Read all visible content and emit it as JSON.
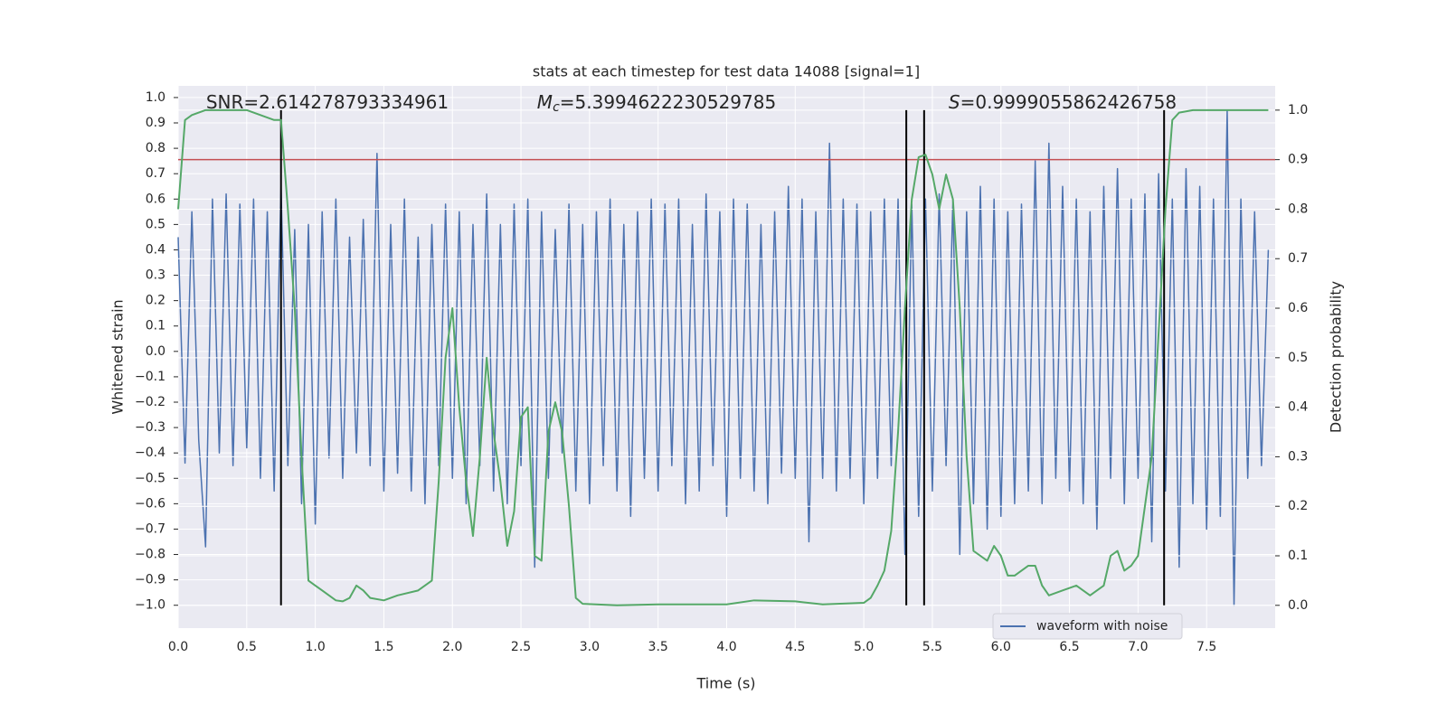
{
  "chart_data": {
    "type": "line",
    "title": "stats at each timestep for test data 14088 [signal=1]",
    "xlabel": "Time (s)",
    "ylabel": "Whitened strain",
    "y2label": "Detection probability",
    "annotations": [
      {
        "text": "SNR=2.614278793334961"
      },
      {
        "symbol": "M",
        "subscript": "c",
        "text": "=5.3994622230529785"
      },
      {
        "symbol": "S",
        "text": "=0.9999055862426758"
      }
    ],
    "xlim": [
      0,
      8.0
    ],
    "ylim": [
      -1.09,
      1.046
    ],
    "y2lim": [
      -0.046,
      1.049
    ],
    "xticks": [
      {
        "value": 0,
        "label": "0.0"
      },
      0.5,
      {
        "value": 1,
        "label": "1.0"
      },
      1.5,
      {
        "value": 2,
        "label": "2.0"
      },
      2.5,
      {
        "value": 3,
        "label": "3.0"
      },
      3.5,
      {
        "value": 4,
        "label": "4.0"
      },
      4.5,
      {
        "value": 5,
        "label": "5.0"
      },
      5.5,
      {
        "value": 6,
        "label": "6.0"
      },
      6.5,
      {
        "value": 7,
        "label": "7.0"
      },
      7.5
    ],
    "yticks": [
      {
        "value": -1,
        "label": "−1.0"
      },
      {
        "value": -0.9,
        "label": "−0.9"
      },
      {
        "value": -0.8,
        "label": "−0.8"
      },
      {
        "value": -0.7,
        "label": "−0.7"
      },
      {
        "value": -0.6,
        "label": "−0.6"
      },
      {
        "value": -0.5,
        "label": "−0.5"
      },
      {
        "value": -0.4,
        "label": "−0.4"
      },
      {
        "value": -0.3,
        "label": "−0.3"
      },
      {
        "value": -0.2,
        "label": "−0.2"
      },
      {
        "value": -0.1,
        "label": "−0.1"
      },
      {
        "value": 0,
        "label": "0.0"
      },
      0.1,
      0.2,
      0.3,
      0.4,
      0.5,
      0.6,
      0.7,
      0.8,
      0.9,
      {
        "value": 1,
        "label": "1.0"
      }
    ],
    "y2ticks": [
      {
        "value": 0,
        "label": "0.0"
      },
      0.1,
      0.2,
      0.3,
      0.4,
      0.5,
      0.6,
      0.7,
      0.8,
      0.9,
      {
        "value": 1,
        "label": "1.0"
      }
    ],
    "grid": true,
    "legend": "lower right",
    "hline_y2": 0.9,
    "hline_color": "#c44e52",
    "vlines": [
      0.75,
      5.31,
      5.44,
      7.19
    ],
    "vline_color": "#000000",
    "series": [
      {
        "name": "waveform with noise",
        "color": "#4c72b0",
        "x": [
          0,
          0.05,
          0.1,
          0.15,
          0.2,
          0.25,
          0.3,
          0.35,
          0.4,
          0.45,
          0.5,
          0.55,
          0.6,
          0.65,
          0.7,
          0.75,
          0.8,
          0.85,
          0.9,
          0.95,
          1,
          1.05,
          1.1,
          1.15,
          1.2,
          1.25,
          1.3,
          1.35,
          1.4,
          1.45,
          1.5,
          1.55,
          1.6,
          1.65,
          1.7,
          1.75,
          1.8,
          1.85,
          1.9,
          1.95,
          2,
          2.05,
          2.1,
          2.15,
          2.2,
          2.25,
          2.3,
          2.35,
          2.4,
          2.45,
          2.5,
          2.55,
          2.6,
          2.65,
          2.7,
          2.75,
          2.8,
          2.85,
          2.9,
          2.95,
          3,
          3.05,
          3.1,
          3.15,
          3.2,
          3.25,
          3.3,
          3.35,
          3.4,
          3.45,
          3.5,
          3.55,
          3.6,
          3.65,
          3.7,
          3.75,
          3.8,
          3.85,
          3.9,
          3.95,
          4,
          4.05,
          4.1,
          4.15,
          4.2,
          4.25,
          4.3,
          4.35,
          4.4,
          4.45,
          4.5,
          4.55,
          4.6,
          4.65,
          4.7,
          4.75,
          4.8,
          4.85,
          4.9,
          4.95,
          5,
          5.05,
          5.1,
          5.15,
          5.2,
          5.25,
          5.3,
          5.35,
          5.4,
          5.45,
          5.5,
          5.55,
          5.6,
          5.65,
          5.7,
          5.75,
          5.8,
          5.85,
          5.9,
          5.95,
          6,
          6.05,
          6.1,
          6.15,
          6.2,
          6.25,
          6.3,
          6.35,
          6.4,
          6.45,
          6.5,
          6.55,
          6.6,
          6.65,
          6.7,
          6.75,
          6.8,
          6.85,
          6.9,
          6.95,
          7,
          7.05,
          7.1,
          7.15,
          7.2,
          7.25,
          7.3,
          7.35,
          7.4,
          7.45,
          7.5,
          7.55,
          7.6,
          7.65,
          7.7,
          7.75,
          7.8,
          7.85,
          7.9,
          7.95
        ],
        "values": [
          0.45,
          -0.44,
          0.55,
          -0.35,
          -0.77,
          0.6,
          -0.4,
          0.62,
          -0.45,
          0.58,
          -0.38,
          0.6,
          -0.5,
          0.55,
          -0.55,
          0.65,
          -0.45,
          0.48,
          -0.6,
          0.5,
          -0.68,
          0.55,
          -0.42,
          0.6,
          -0.5,
          0.45,
          -0.4,
          0.52,
          -0.45,
          0.78,
          -0.55,
          0.5,
          -0.48,
          0.6,
          -0.55,
          0.45,
          -0.6,
          0.5,
          -0.45,
          0.58,
          -0.5,
          0.55,
          -0.6,
          0.5,
          -0.45,
          0.62,
          -0.55,
          0.5,
          -0.6,
          0.58,
          -0.45,
          0.6,
          -0.85,
          0.55,
          -0.5,
          0.48,
          -0.4,
          0.58,
          -0.55,
          0.5,
          -0.6,
          0.55,
          -0.45,
          0.6,
          -0.55,
          0.5,
          -0.65,
          0.55,
          -0.5,
          0.6,
          -0.55,
          0.58,
          -0.45,
          0.6,
          -0.6,
          0.5,
          -0.55,
          0.62,
          -0.45,
          0.55,
          -0.65,
          0.6,
          -0.5,
          0.58,
          -0.55,
          0.5,
          -0.6,
          0.55,
          -0.48,
          0.65,
          -0.5,
          0.6,
          -0.75,
          0.55,
          -0.5,
          0.82,
          -0.55,
          0.6,
          -0.5,
          0.58,
          -0.6,
          0.55,
          -0.5,
          0.6,
          -0.45,
          0.6,
          -0.8,
          0.58,
          -0.65,
          0.6,
          -0.55,
          0.62,
          -0.45,
          0.6,
          -0.8,
          0.55,
          -0.6,
          0.65,
          -0.7,
          0.6,
          -0.65,
          0.55,
          -0.6,
          0.58,
          -0.55,
          0.75,
          -0.6,
          0.82,
          -0.5,
          0.65,
          -0.55,
          0.6,
          -0.6,
          0.55,
          -0.7,
          0.65,
          -0.5,
          0.72,
          -0.6,
          0.6,
          -0.5,
          0.62,
          -0.75,
          0.7,
          -0.55,
          0.6,
          -0.85,
          0.72,
          -0.6,
          0.65,
          -0.7,
          0.6,
          -0.65,
          0.95,
          -1.0,
          0.6,
          -0.5,
          0.55,
          -0.45,
          0.4
        ]
      },
      {
        "color": "#55a868",
        "axis": "y2",
        "x": [
          0,
          0.05,
          0.1,
          0.2,
          0.5,
          0.6,
          0.7,
          0.75,
          0.8,
          0.85,
          0.9,
          0.95,
          1,
          1.05,
          1.1,
          1.15,
          1.2,
          1.25,
          1.3,
          1.35,
          1.4,
          1.5,
          1.6,
          1.75,
          1.85,
          1.9,
          1.95,
          2,
          2.05,
          2.1,
          2.15,
          2.2,
          2.25,
          2.3,
          2.35,
          2.4,
          2.45,
          2.5,
          2.55,
          2.6,
          2.65,
          2.7,
          2.75,
          2.8,
          2.85,
          2.9,
          2.95,
          3.2,
          3.5,
          4,
          4.2,
          4.5,
          4.7,
          5,
          5.05,
          5.1,
          5.15,
          5.2,
          5.25,
          5.3,
          5.35,
          5.4,
          5.45,
          5.5,
          5.55,
          5.6,
          5.65,
          5.7,
          5.75,
          5.8,
          5.85,
          5.9,
          5.95,
          6,
          6.05,
          6.1,
          6.2,
          6.25,
          6.3,
          6.35,
          6.45,
          6.55,
          6.65,
          6.75,
          6.8,
          6.85,
          6.9,
          6.95,
          7,
          7.05,
          7.1,
          7.15,
          7.2,
          7.25,
          7.3,
          7.4,
          7.95
        ],
        "values": [
          0.8,
          0.98,
          0.99,
          1.0,
          1.0,
          0.99,
          0.98,
          0.98,
          0.8,
          0.6,
          0.3,
          0.05,
          0.04,
          0.03,
          0.02,
          0.01,
          0.008,
          0.015,
          0.04,
          0.03,
          0.015,
          0.01,
          0.02,
          0.03,
          0.05,
          0.25,
          0.5,
          0.6,
          0.4,
          0.25,
          0.14,
          0.3,
          0.5,
          0.35,
          0.25,
          0.12,
          0.19,
          0.38,
          0.4,
          0.1,
          0.09,
          0.35,
          0.41,
          0.35,
          0.2,
          0.015,
          0.003,
          0.0,
          0.002,
          0.002,
          0.01,
          0.008,
          0.002,
          0.005,
          0.015,
          0.04,
          0.07,
          0.15,
          0.35,
          0.6,
          0.82,
          0.905,
          0.91,
          0.87,
          0.8,
          0.87,
          0.82,
          0.6,
          0.3,
          0.11,
          0.1,
          0.09,
          0.12,
          0.1,
          0.06,
          0.06,
          0.08,
          0.08,
          0.04,
          0.02,
          0.03,
          0.04,
          0.02,
          0.04,
          0.1,
          0.11,
          0.07,
          0.08,
          0.1,
          0.2,
          0.3,
          0.55,
          0.8,
          0.98,
          0.995,
          1.0,
          1.0
        ]
      }
    ]
  }
}
